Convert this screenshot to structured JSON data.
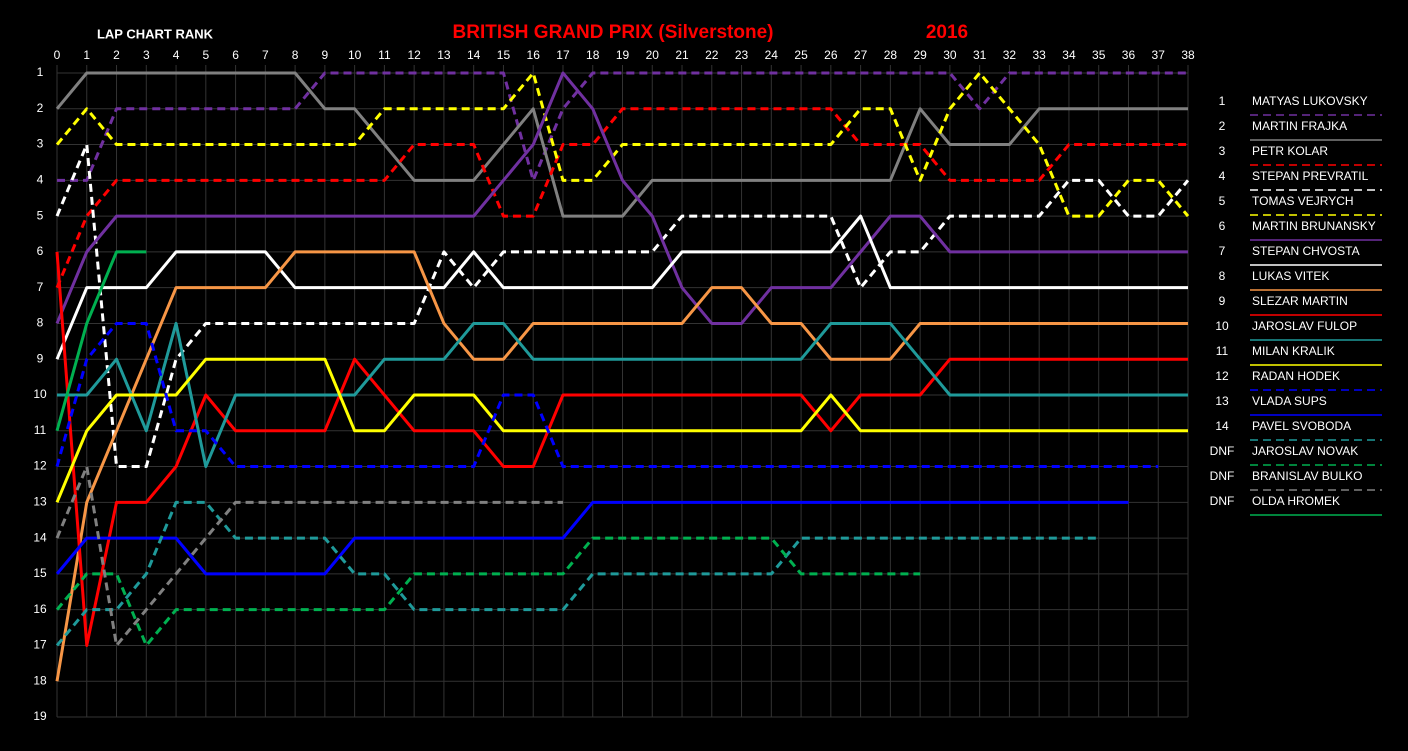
{
  "chart_data": {
    "type": "line",
    "title": "BRITISH GRAND PRIX (Silverstone)",
    "year": "2016",
    "y_label": "LAP CHART RANK",
    "x": [
      0,
      1,
      2,
      3,
      4,
      5,
      6,
      7,
      8,
      9,
      10,
      11,
      12,
      13,
      14,
      15,
      16,
      17,
      18,
      19,
      20,
      21,
      22,
      23,
      24,
      25,
      26,
      27,
      28,
      29,
      30,
      31,
      32,
      33,
      34,
      35,
      36,
      37,
      38
    ],
    "xlim": [
      0,
      38
    ],
    "xticks": [
      0,
      1,
      2,
      3,
      4,
      5,
      6,
      7,
      8,
      9,
      10,
      11,
      12,
      13,
      14,
      15,
      16,
      17,
      18,
      19,
      20,
      21,
      22,
      23,
      24,
      25,
      26,
      27,
      28,
      29,
      30,
      31,
      32,
      33,
      34,
      35,
      36,
      37,
      38
    ],
    "ylim": [
      19,
      1
    ],
    "yticks": [
      1,
      2,
      3,
      4,
      5,
      6,
      7,
      8,
      9,
      10,
      11,
      12,
      13,
      14,
      15,
      16,
      17,
      18,
      19
    ],
    "grid": true,
    "legend_ranks": [
      "1",
      "2",
      "3",
      "4",
      "5",
      "6",
      "7",
      "8",
      "9",
      "10",
      "11",
      "12",
      "13",
      "14",
      "DNF",
      "DNF",
      "DNF"
    ],
    "series": [
      {
        "name": "MATYAS LUKOVSKY",
        "color": "#7030a0",
        "dashed": true,
        "values": [
          4,
          4,
          2,
          2,
          2,
          2,
          2,
          2,
          2,
          1,
          1,
          1,
          1,
          1,
          1,
          1,
          4,
          2,
          1,
          1,
          1,
          1,
          1,
          1,
          1,
          1,
          1,
          1,
          1,
          1,
          1,
          2,
          1,
          1,
          1,
          1,
          1,
          1,
          1
        ]
      },
      {
        "name": "MARTIN FRAJKA",
        "color": "#808080",
        "dashed": false,
        "values": [
          2,
          1,
          1,
          1,
          1,
          1,
          1,
          1,
          1,
          2,
          2,
          3,
          4,
          4,
          4,
          3,
          2,
          5,
          5,
          5,
          4,
          4,
          4,
          4,
          4,
          4,
          4,
          4,
          4,
          2,
          3,
          3,
          3,
          2,
          2,
          2,
          2,
          2,
          2
        ]
      },
      {
        "name": "PETR KOLAR",
        "color": "#ff0000",
        "dashed": true,
        "values": [
          7,
          5,
          4,
          4,
          4,
          4,
          4,
          4,
          4,
          4,
          4,
          4,
          3,
          3,
          3,
          5,
          5,
          3,
          3,
          2,
          2,
          2,
          2,
          2,
          2,
          2,
          2,
          3,
          3,
          3,
          4,
          4,
          4,
          4,
          3,
          3,
          3,
          3,
          3
        ]
      },
      {
        "name": "STEPAN PREVRATIL",
        "color": "#ffffff",
        "dashed": true,
        "values": [
          5,
          3,
          12,
          12,
          9,
          8,
          8,
          8,
          8,
          8,
          8,
          8,
          8,
          6,
          7,
          6,
          6,
          6,
          6,
          6,
          6,
          5,
          5,
          5,
          5,
          5,
          5,
          7,
          6,
          6,
          5,
          5,
          5,
          5,
          4,
          4,
          5,
          5,
          4
        ]
      },
      {
        "name": "TOMAS VEJRYCH",
        "color": "#ffff00",
        "dashed": true,
        "values": [
          3,
          2,
          3,
          3,
          3,
          3,
          3,
          3,
          3,
          3,
          3,
          2,
          2,
          2,
          2,
          2,
          1,
          4,
          4,
          3,
          3,
          3,
          3,
          3,
          3,
          3,
          3,
          2,
          2,
          4,
          2,
          1,
          2,
          3,
          5,
          5,
          4,
          4,
          5
        ]
      },
      {
        "name": "MARTIN BRUNANSKY",
        "color": "#7030a0",
        "dashed": false,
        "values": [
          8,
          6,
          5,
          5,
          5,
          5,
          5,
          5,
          5,
          5,
          5,
          5,
          5,
          5,
          5,
          4,
          3,
          1,
          2,
          4,
          5,
          7,
          8,
          8,
          7,
          7,
          7,
          6,
          5,
          5,
          6,
          6,
          6,
          6,
          6,
          6,
          6,
          6,
          6
        ]
      },
      {
        "name": "STEPAN CHVOSTA",
        "color": "#ffffff",
        "dashed": false,
        "values": [
          9,
          7,
          7,
          7,
          6,
          6,
          6,
          6,
          7,
          7,
          7,
          7,
          7,
          7,
          6,
          7,
          7,
          7,
          7,
          7,
          7,
          6,
          6,
          6,
          6,
          6,
          6,
          5,
          7,
          7,
          7,
          7,
          7,
          7,
          7,
          7,
          7,
          7,
          7
        ]
      },
      {
        "name": "LUKAS VITEK",
        "color": "#f79646",
        "dashed": false,
        "values": [
          18,
          13,
          11,
          9,
          7,
          7,
          7,
          7,
          6,
          6,
          6,
          6,
          6,
          8,
          9,
          9,
          8,
          8,
          8,
          8,
          8,
          8,
          7,
          7,
          8,
          8,
          9,
          9,
          9,
          8,
          8,
          8,
          8,
          8,
          8,
          8,
          8,
          8,
          8
        ]
      },
      {
        "name": "SLEZAR MARTIN",
        "color": "#ff0000",
        "dashed": false,
        "values": [
          6,
          17,
          13,
          13,
          12,
          10,
          11,
          11,
          11,
          11,
          9,
          10,
          11,
          11,
          11,
          12,
          12,
          10,
          10,
          10,
          10,
          10,
          10,
          10,
          10,
          10,
          11,
          10,
          10,
          10,
          9,
          9,
          9,
          9,
          9,
          9,
          9,
          9,
          9
        ]
      },
      {
        "name": "JAROSLAV FULOP",
        "color": "#1f9a9a",
        "dashed": false,
        "values": [
          10,
          10,
          9,
          11,
          8,
          12,
          10,
          10,
          10,
          10,
          10,
          9,
          9,
          9,
          8,
          8,
          9,
          9,
          9,
          9,
          9,
          9,
          9,
          9,
          9,
          9,
          8,
          8,
          8,
          9,
          10,
          10,
          10,
          10,
          10,
          10,
          10,
          10,
          10
        ]
      },
      {
        "name": "MILAN KRALIK",
        "color": "#ffff00",
        "dashed": false,
        "values": [
          13,
          11,
          10,
          10,
          10,
          9,
          9,
          9,
          9,
          9,
          11,
          11,
          10,
          10,
          10,
          11,
          11,
          11,
          11,
          11,
          11,
          11,
          11,
          11,
          11,
          11,
          10,
          11,
          11,
          11,
          11,
          11,
          11,
          11,
          11,
          11,
          11,
          11,
          11
        ]
      },
      {
        "name": "RADAN HODEK",
        "color": "#0000ff",
        "dashed": true,
        "values": [
          12,
          9,
          8,
          8,
          11,
          11,
          12,
          12,
          12,
          12,
          12,
          12,
          12,
          12,
          12,
          10,
          10,
          12,
          12,
          12,
          12,
          12,
          12,
          12,
          12,
          12,
          12,
          12,
          12,
          12,
          12,
          12,
          12,
          12,
          12,
          12,
          12,
          12,
          null
        ]
      },
      {
        "name": "VLADA SUPS",
        "color": "#0000ff",
        "dashed": false,
        "values": [
          15,
          14,
          14,
          14,
          14,
          15,
          15,
          15,
          15,
          15,
          14,
          14,
          14,
          14,
          14,
          14,
          14,
          14,
          13,
          13,
          13,
          13,
          13,
          13,
          13,
          13,
          13,
          13,
          13,
          13,
          13,
          13,
          13,
          13,
          13,
          13,
          13,
          null,
          null
        ]
      },
      {
        "name": "PAVEL SVOBODA",
        "color": "#1f9a9a",
        "dashed": true,
        "values": [
          17,
          16,
          16,
          15,
          13,
          13,
          14,
          14,
          14,
          14,
          15,
          15,
          16,
          16,
          16,
          16,
          16,
          16,
          15,
          15,
          15,
          15,
          15,
          15,
          15,
          14,
          14,
          14,
          14,
          14,
          14,
          14,
          14,
          14,
          14,
          14,
          null,
          null,
          null
        ]
      },
      {
        "name": "JAROSLAV NOVAK",
        "color": "#00b050",
        "dashed": true,
        "values": [
          16,
          15,
          15,
          17,
          16,
          16,
          16,
          16,
          16,
          16,
          16,
          16,
          15,
          15,
          15,
          15,
          15,
          15,
          14,
          14,
          14,
          14,
          14,
          14,
          14,
          15,
          15,
          15,
          15,
          15,
          null,
          null,
          null,
          null,
          null,
          null,
          null,
          null,
          null
        ]
      },
      {
        "name": "BRANISLAV BULKO",
        "color": "#808080",
        "dashed": true,
        "values": [
          14,
          12,
          17,
          16,
          15,
          14,
          13,
          13,
          13,
          13,
          13,
          13,
          13,
          13,
          13,
          13,
          13,
          13,
          null,
          null,
          null,
          null,
          null,
          null,
          null,
          null,
          null,
          null,
          null,
          null,
          null,
          null,
          null,
          null,
          null,
          null,
          null,
          null,
          null
        ]
      },
      {
        "name": "OLDA HROMEK",
        "color": "#00b050",
        "dashed": false,
        "values": [
          11,
          8,
          6,
          6,
          null,
          null,
          null,
          null,
          null,
          null,
          null,
          null,
          null,
          null,
          null,
          null,
          null,
          null,
          null,
          null,
          null,
          null,
          null,
          null,
          null,
          null,
          null,
          null,
          null,
          null,
          null,
          null,
          null,
          null,
          null,
          null,
          null,
          null,
          null
        ]
      }
    ]
  }
}
